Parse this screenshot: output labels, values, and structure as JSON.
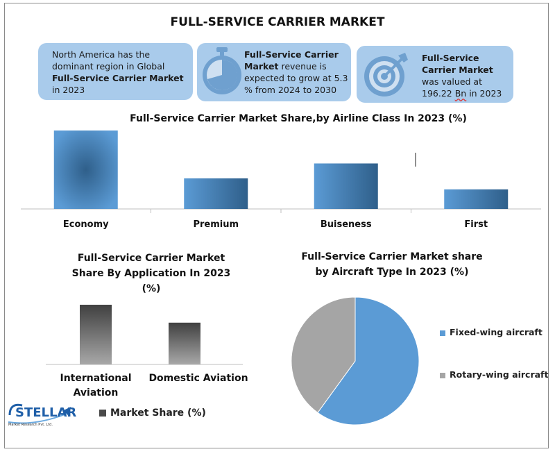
{
  "title": "FULL-SERVICE CARRIER MARKET",
  "cards": {
    "region": {
      "pre": "North America has the dominant region in Global ",
      "bold": "Full-Service Carrier Market",
      "post": " in 2023"
    },
    "growth": {
      "bold": "Full-Service Carrier Market",
      "post": " revenue is expected to grow at 5.3 % from 2024 to 2030",
      "icon": "stopwatch-icon"
    },
    "value": {
      "bold": "Full-Service Carrier Market",
      "pre2": "was valued at 196.22 ",
      "unit": "Bn",
      "post2": " in 2023",
      "icon": "target-icon"
    }
  },
  "chart_data": [
    {
      "type": "bar",
      "title": "Full-Service Carrier Market Share,by Airline Class In 2023 (%)",
      "categories": [
        "Economy",
        "Premium",
        "Buiseness",
        "First"
      ],
      "values": [
        100,
        39,
        58,
        25
      ],
      "ylim": [
        0,
        100
      ],
      "grid": false,
      "colors": [
        "#5b9bd5",
        "#2f5f8a"
      ]
    },
    {
      "type": "bar",
      "title": "Full-Service Carrier Market Share By Application In 2023 (%)",
      "categories": [
        "International Aviation",
        "Domestic Aviation"
      ],
      "series": [
        {
          "name": "Market Share (%)",
          "values": [
            100,
            70
          ]
        }
      ],
      "ylim": [
        0,
        100
      ],
      "legend": "bottom",
      "colors": [
        "#404040",
        "#9e9e9e"
      ]
    },
    {
      "type": "pie",
      "title": "Full-Service Carrier Market share by Aircraft Type In 2023 (%)",
      "labels": [
        "Fixed-wing aircraft",
        "Rotary-wing aircraft"
      ],
      "values": [
        60,
        40
      ],
      "colors": [
        "#5b9bd5",
        "#a5a5a5"
      ],
      "legend": "right"
    }
  ],
  "logo": {
    "name": "STELLAR",
    "tagline": "Market Research Pvt. Ltd."
  }
}
